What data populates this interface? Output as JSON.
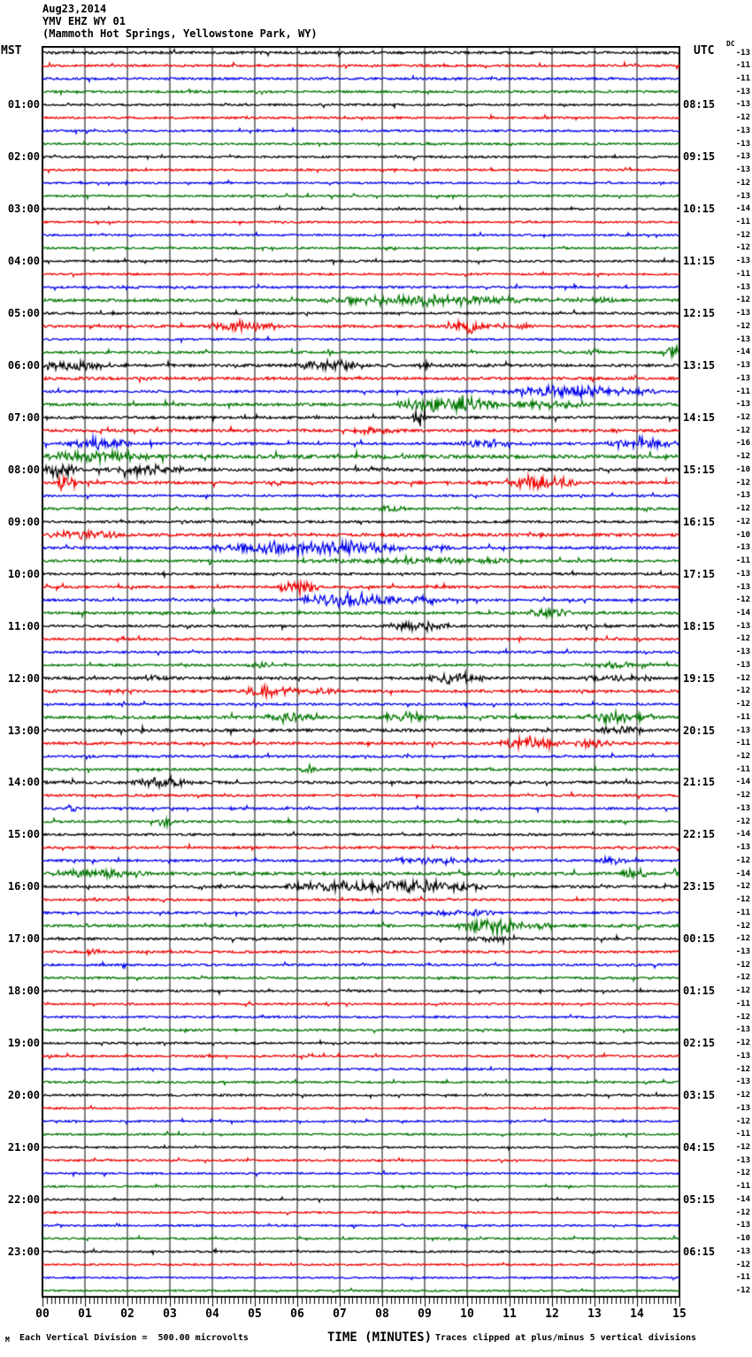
{
  "header": {
    "date": "Aug23,2014",
    "station": "YMV EHZ WY 01",
    "location": "(Mammoth Hot Springs, Yellowstone Park, WY)"
  },
  "columns": {
    "left": "MST",
    "right": "UTC",
    "dc": "DC"
  },
  "footer": {
    "marker": "M",
    "division_note": "Each Vertical Division =  500.00 microvolts",
    "axis_title": "TIME (MINUTES)",
    "clip_note": "Traces clipped at plus/minus 5 vertical divisions"
  },
  "chart_data": {
    "type": "line",
    "subtype": "seismogram-helicorder",
    "title": "YMV EHZ WY 01 (Mammoth Hot Springs, Yellowstone Park, WY)",
    "date": "Aug23,2014",
    "xlabel": "TIME (MINUTES)",
    "x_range": [
      0,
      15
    ],
    "x_ticks": [
      "00",
      "01",
      "02",
      "03",
      "04",
      "05",
      "06",
      "07",
      "08",
      "09",
      "10",
      "11",
      "12",
      "13",
      "14",
      "15"
    ],
    "minutes_per_line": 15,
    "lines_per_hour": 4,
    "microvolts_per_division": 500.0,
    "clip_divisions": 5,
    "grid": true,
    "seed": 20140823,
    "colors": {
      "cycle": [
        "#000000",
        "#ee0000",
        "#0000ee",
        "#007700"
      ],
      "grid": "#808080",
      "frame": "#000000"
    },
    "rows": [
      {
        "dc": -13,
        "n": 0.9
      },
      {
        "dc": -11,
        "n": 0.8
      },
      {
        "dc": -11,
        "n": 0.8
      },
      {
        "dc": -13,
        "n": 0.8
      },
      {
        "mst": "01:00",
        "utc": "08:15",
        "dc": -13,
        "n": 0.7
      },
      {
        "dc": -12,
        "n": 0.7
      },
      {
        "dc": -13,
        "n": 0.7
      },
      {
        "dc": -13,
        "n": 0.7
      },
      {
        "mst": "02:00",
        "utc": "09:15",
        "dc": -13,
        "n": 0.7
      },
      {
        "dc": -13,
        "n": 0.7
      },
      {
        "dc": -12,
        "n": 0.65
      },
      {
        "dc": -13,
        "n": 0.7
      },
      {
        "mst": "03:00",
        "utc": "10:15",
        "dc": -14,
        "n": 0.7
      },
      {
        "dc": -11,
        "n": 0.65
      },
      {
        "dc": -12,
        "n": 0.65
      },
      {
        "dc": -12,
        "n": 0.7
      },
      {
        "mst": "04:00",
        "utc": "11:15",
        "dc": -13,
        "n": 0.75
      },
      {
        "dc": -11,
        "n": 0.7
      },
      {
        "dc": -13,
        "n": 0.75
      },
      {
        "dc": -12,
        "n": 1.0,
        "e": [
          [
            6.5,
            11.5,
            2.2
          ],
          [
            12.5,
            13.5,
            1.3
          ]
        ]
      },
      {
        "mst": "05:00",
        "utc": "12:15",
        "dc": -13,
        "n": 0.8
      },
      {
        "dc": -12,
        "n": 0.9,
        "e": [
          [
            3.8,
            5.6,
            2.2
          ],
          [
            9.4,
            10.6,
            2.8
          ],
          [
            10.6,
            11.6,
            1.4
          ]
        ]
      },
      {
        "dc": -13,
        "n": 0.7
      },
      {
        "dc": -14,
        "n": 0.8,
        "e": [
          [
            12.8,
            13.2,
            1.8
          ],
          [
            14.6,
            15,
            3.5
          ]
        ]
      },
      {
        "mst": "06:00",
        "utc": "13:15",
        "dc": -13,
        "n": 1.0,
        "e": [
          [
            0,
            1.6,
            2.6
          ],
          [
            5.9,
            7.7,
            2.2
          ],
          [
            8.8,
            9.2,
            1.8
          ]
        ]
      },
      {
        "dc": -13,
        "n": 1.0
      },
      {
        "dc": -11,
        "n": 0.8,
        "e": [
          [
            10.8,
            13.6,
            2.8
          ],
          [
            13.6,
            14.6,
            1.4
          ]
        ]
      },
      {
        "dc": -13,
        "n": 1.0,
        "e": [
          [
            8.3,
            10.8,
            4
          ],
          [
            10.8,
            13,
            1.8
          ]
        ]
      },
      {
        "mst": "07:00",
        "utc": "14:15",
        "dc": -12,
        "n": 0.9,
        "e": [
          [
            8.7,
            9.05,
            5
          ]
        ]
      },
      {
        "dc": -12,
        "n": 1.0,
        "e": [
          [
            7.2,
            8.6,
            1.2
          ]
        ]
      },
      {
        "dc": -16,
        "n": 0.9,
        "e": [
          [
            0.4,
            2.2,
            2.6
          ],
          [
            9.8,
            11.2,
            1.8
          ],
          [
            13.2,
            15,
            2.8
          ]
        ]
      },
      {
        "dc": -12,
        "n": 1.3,
        "e": [
          [
            0,
            2.6,
            2.6
          ]
        ]
      },
      {
        "mst": "08:00",
        "utc": "15:15",
        "dc": -10,
        "n": 1.1,
        "e": [
          [
            0,
            0.9,
            3.2
          ],
          [
            1.5,
            3.4,
            2.2
          ]
        ]
      },
      {
        "dc": -12,
        "n": 1.0,
        "e": [
          [
            0.3,
            0.8,
            3.2
          ],
          [
            10.8,
            12.6,
            3.6
          ]
        ]
      },
      {
        "dc": -13,
        "n": 0.75
      },
      {
        "dc": -12,
        "n": 0.85,
        "e": [
          [
            7.9,
            8.6,
            1.8
          ]
        ]
      },
      {
        "mst": "09:00",
        "utc": "16:15",
        "dc": -12,
        "n": 0.8
      },
      {
        "dc": -10,
        "n": 1.05,
        "e": [
          [
            0,
            2,
            1.8
          ]
        ]
      },
      {
        "dc": -13,
        "n": 0.95,
        "e": [
          [
            3.8,
            8.8,
            3
          ],
          [
            8.8,
            9.7,
            1.8
          ]
        ]
      },
      {
        "dc": -11,
        "n": 0.9,
        "e": [
          [
            5.5,
            12,
            1.1
          ]
        ]
      },
      {
        "mst": "10:00",
        "utc": "17:15",
        "dc": -13,
        "n": 0.8
      },
      {
        "dc": -13,
        "n": 0.85,
        "e": [
          [
            5.5,
            6.6,
            3
          ]
        ]
      },
      {
        "dc": -12,
        "n": 0.85,
        "e": [
          [
            5.9,
            8.6,
            3
          ],
          [
            8.6,
            9.6,
            1.6
          ]
        ]
      },
      {
        "dc": -14,
        "n": 0.95,
        "e": [
          [
            11.4,
            12.6,
            2.2
          ]
        ]
      },
      {
        "mst": "11:00",
        "utc": "18:15",
        "dc": -13,
        "n": 0.85,
        "e": [
          [
            7.9,
            9.7,
            2
          ]
        ]
      },
      {
        "dc": -12,
        "n": 0.8
      },
      {
        "dc": -13,
        "n": 0.75
      },
      {
        "dc": -13,
        "n": 0.8,
        "e": [
          [
            4.8,
            5.5,
            1.2
          ],
          [
            12.8,
            14,
            1.4
          ]
        ]
      },
      {
        "mst": "12:00",
        "utc": "19:15",
        "dc": -12,
        "n": 1.0,
        "e": [
          [
            2.4,
            3.2,
            1.2
          ],
          [
            9,
            10.6,
            2.6
          ],
          [
            12.5,
            14.5,
            1.4
          ]
        ]
      },
      {
        "dc": -12,
        "n": 0.95,
        "e": [
          [
            4.7,
            6.1,
            2.5
          ],
          [
            6.2,
            7.1,
            1.5
          ]
        ]
      },
      {
        "dc": -12,
        "n": 0.75
      },
      {
        "dc": -11,
        "n": 1.05,
        "e": [
          [
            5.2,
            6.4,
            2.2
          ],
          [
            7.8,
            9.4,
            2.4
          ],
          [
            12.8,
            14.5,
            2.4
          ]
        ]
      },
      {
        "mst": "13:00",
        "utc": "20:15",
        "dc": -13,
        "n": 1.05,
        "e": [
          [
            13,
            14.2,
            1.8
          ]
        ]
      },
      {
        "dc": -11,
        "n": 0.95,
        "e": [
          [
            10.7,
            12.2,
            3.2
          ],
          [
            12.2,
            13.5,
            1.8
          ]
        ]
      },
      {
        "dc": -12,
        "n": 0.8
      },
      {
        "dc": -11,
        "n": 0.85,
        "e": [
          [
            6,
            6.5,
            2.2
          ]
        ]
      },
      {
        "mst": "14:00",
        "utc": "21:15",
        "dc": -14,
        "n": 0.95,
        "e": [
          [
            2,
            3.6,
            2.6
          ]
        ]
      },
      {
        "dc": -12,
        "n": 0.8
      },
      {
        "dc": -13,
        "n": 0.75,
        "e": [
          [
            0.5,
            0.8,
            3
          ]
        ]
      },
      {
        "dc": -12,
        "n": 0.85,
        "e": [
          [
            2.7,
            3.1,
            2.6
          ]
        ]
      },
      {
        "mst": "15:00",
        "utc": "22:15",
        "dc": -14,
        "n": 0.8
      },
      {
        "dc": -13,
        "n": 0.8
      },
      {
        "dc": -12,
        "n": 0.8,
        "e": [
          [
            7.9,
            10.6,
            1.4
          ],
          [
            12.9,
            13.8,
            1.4
          ]
        ]
      },
      {
        "dc": -14,
        "n": 1.05,
        "e": [
          [
            0,
            2.6,
            2
          ],
          [
            13.6,
            14.3,
            2.2
          ],
          [
            14.8,
            15,
            2.8
          ]
        ]
      },
      {
        "mst": "16:00",
        "utc": "23:15",
        "dc": -12,
        "n": 0.95,
        "e": [
          [
            5.5,
            10.5,
            2.8
          ]
        ]
      },
      {
        "dc": -12,
        "n": 0.8
      },
      {
        "dc": -11,
        "n": 0.8,
        "e": [
          [
            8.7,
            11,
            1.3
          ]
        ]
      },
      {
        "dc": -12,
        "n": 0.95,
        "e": [
          [
            9.7,
            11.4,
            3.6
          ],
          [
            11.4,
            12.2,
            1.8
          ]
        ]
      },
      {
        "mst": "17:00",
        "utc": "00:15",
        "dc": -12,
        "n": 0.85,
        "e": [
          [
            9.9,
            11.1,
            1.8
          ]
        ]
      },
      {
        "dc": -13,
        "n": 0.8,
        "e": [
          [
            1,
            1.4,
            2.2
          ]
        ]
      },
      {
        "dc": -12,
        "n": 0.75
      },
      {
        "dc": -12,
        "n": 0.8
      },
      {
        "mst": "18:00",
        "utc": "01:15",
        "dc": -12,
        "n": 0.75
      },
      {
        "dc": -11,
        "n": 0.7
      },
      {
        "dc": -12,
        "n": 0.7
      },
      {
        "dc": -13,
        "n": 0.8
      },
      {
        "mst": "19:00",
        "utc": "02:15",
        "dc": -12,
        "n": 0.7
      },
      {
        "dc": -13,
        "n": 0.7
      },
      {
        "dc": -12,
        "n": 0.7
      },
      {
        "dc": -13,
        "n": 0.7
      },
      {
        "mst": "20:00",
        "utc": "03:15",
        "dc": -12,
        "n": 0.7
      },
      {
        "dc": -13,
        "n": 0.65
      },
      {
        "dc": -12,
        "n": 0.65
      },
      {
        "dc": -11,
        "n": 0.7
      },
      {
        "mst": "21:00",
        "utc": "04:15",
        "dc": -12,
        "n": 0.65
      },
      {
        "dc": -13,
        "n": 0.65
      },
      {
        "dc": -12,
        "n": 0.65
      },
      {
        "dc": -11,
        "n": 0.65
      },
      {
        "mst": "22:00",
        "utc": "05:15",
        "dc": -14,
        "n": 0.65
      },
      {
        "dc": -12,
        "n": 0.65
      },
      {
        "dc": -13,
        "n": 0.65
      },
      {
        "dc": -10,
        "n": 0.65
      },
      {
        "mst": "23:00",
        "utc": "06:15",
        "dc": -13,
        "n": 0.65
      },
      {
        "dc": -12,
        "n": 0.6
      },
      {
        "dc": -11,
        "n": 0.6
      },
      {
        "dc": -12,
        "n": 0.6
      }
    ]
  }
}
